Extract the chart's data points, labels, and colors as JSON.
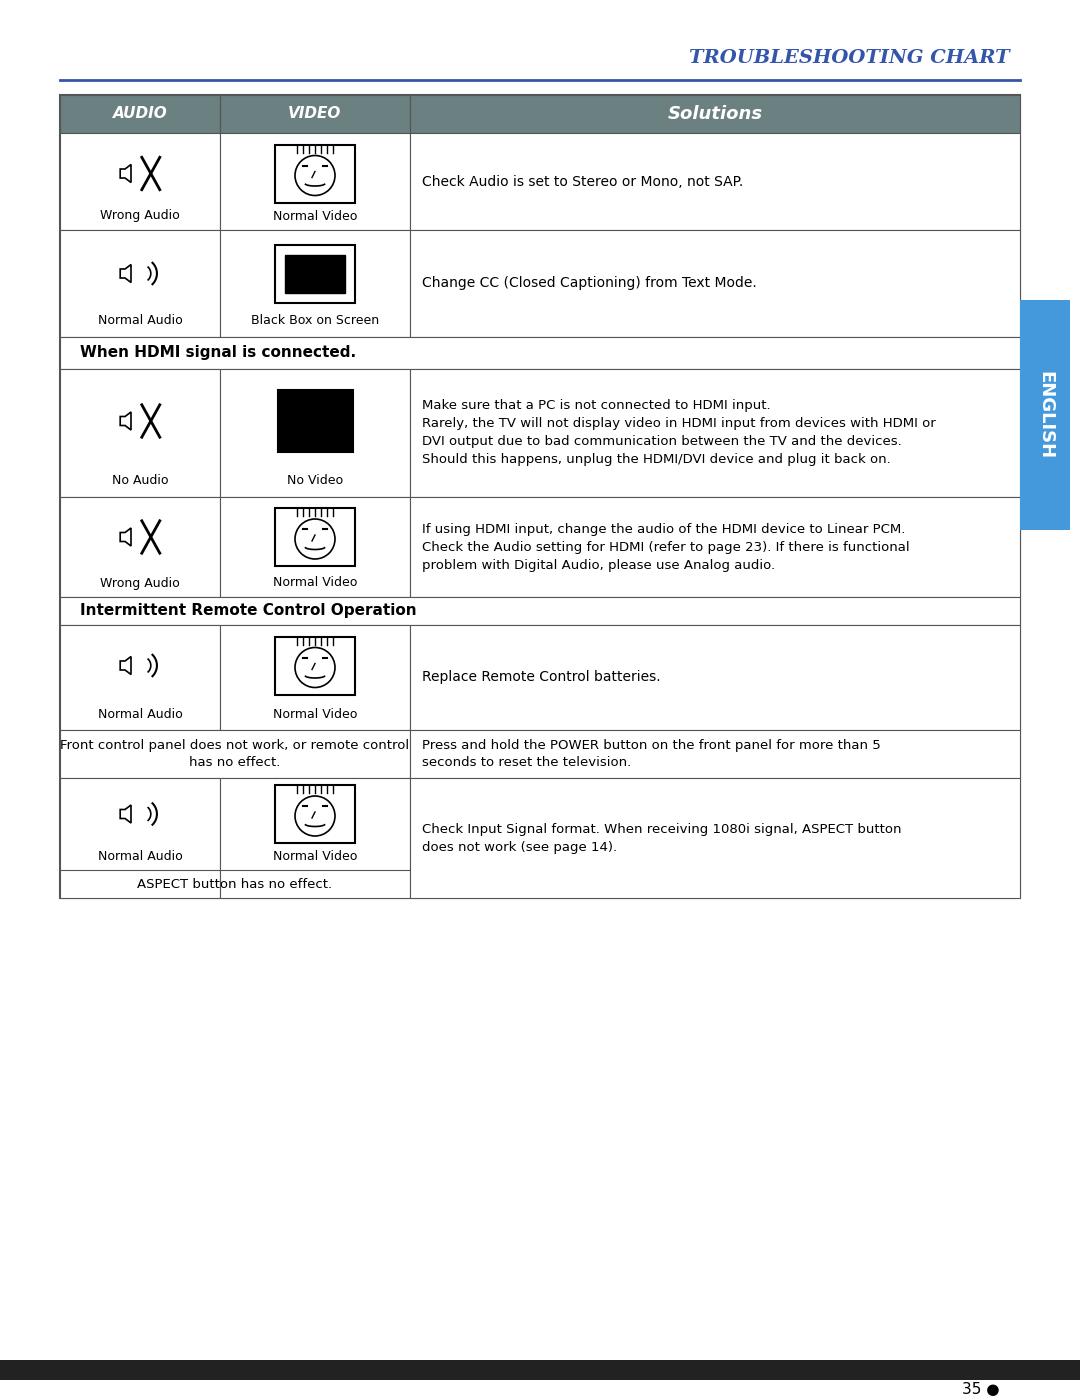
{
  "title": "TROUBLESHOOTING CHART",
  "title_color": "#3355aa",
  "header_bg": "#6b8080",
  "header_text_color": "#ffffff",
  "col_headers": [
    "AUDIO",
    "VIDEO",
    "Solutions"
  ],
  "section_hdmi": "When HDMI signal is connected.",
  "section_remote": "Intermittent Remote Control Operation",
  "rows": [
    {
      "audio_label": "Wrong Audio",
      "audio_type": "wrong",
      "video_label": "Normal Video",
      "video_type": "normal_video",
      "solution": "Check Audio is set to Stereo or Mono, not SAP."
    },
    {
      "audio_label": "Normal Audio",
      "audio_type": "normal",
      "video_label": "Black Box on Screen",
      "video_type": "black_box",
      "solution": "Change CC (Closed Captioning) from Text Mode."
    },
    {
      "section": "When HDMI signal is connected.",
      "audio_label": "No Audio",
      "audio_type": "no_audio",
      "video_label": "No Video",
      "video_type": "black_full",
      "solution": "Make sure that a PC is not connected to HDMI input.\nRarely, the TV will not display video in HDMI input from devices with HDMI or\nDVI output due to bad communication between the TV and the devices.\nShould this happens, unplug the HDMI/DVI device and plug it back on."
    },
    {
      "audio_label": "Wrong Audio",
      "audio_type": "wrong",
      "video_label": "Normal Video",
      "video_type": "normal_video",
      "solution": "If using HDMI input, change the audio of the HDMI device to Linear PCM.\nCheck the Audio setting for HDMI (refer to page 23). If there is functional\nproblem with Digital Audio, please use Analog audio."
    },
    {
      "section": "Intermittent Remote Control Operation",
      "audio_label": "Normal Audio",
      "audio_type": "normal",
      "video_label": "Normal Video",
      "video_type": "normal_video",
      "solution": "Replace Remote Control batteries."
    },
    {
      "audio_label": "",
      "audio_type": "text_only",
      "text_left": "Front control panel does not work, or remote control\nhas no effect.",
      "solution": "Press and hold the POWER button on the front panel for more than 5\nseconds to reset the television."
    },
    {
      "audio_label": "Normal Audio",
      "audio_type": "normal",
      "video_label": "Normal Video",
      "video_type": "normal_video",
      "solution": "Check Input Signal format. When receiving 1080i signal, ASPECT button\ndoes not work (see page 14).",
      "extra_text": "ASPECT button has no effect."
    }
  ],
  "english_tab_color": "#4499dd",
  "page_number": "35",
  "bottom_bar_color": "#222222"
}
